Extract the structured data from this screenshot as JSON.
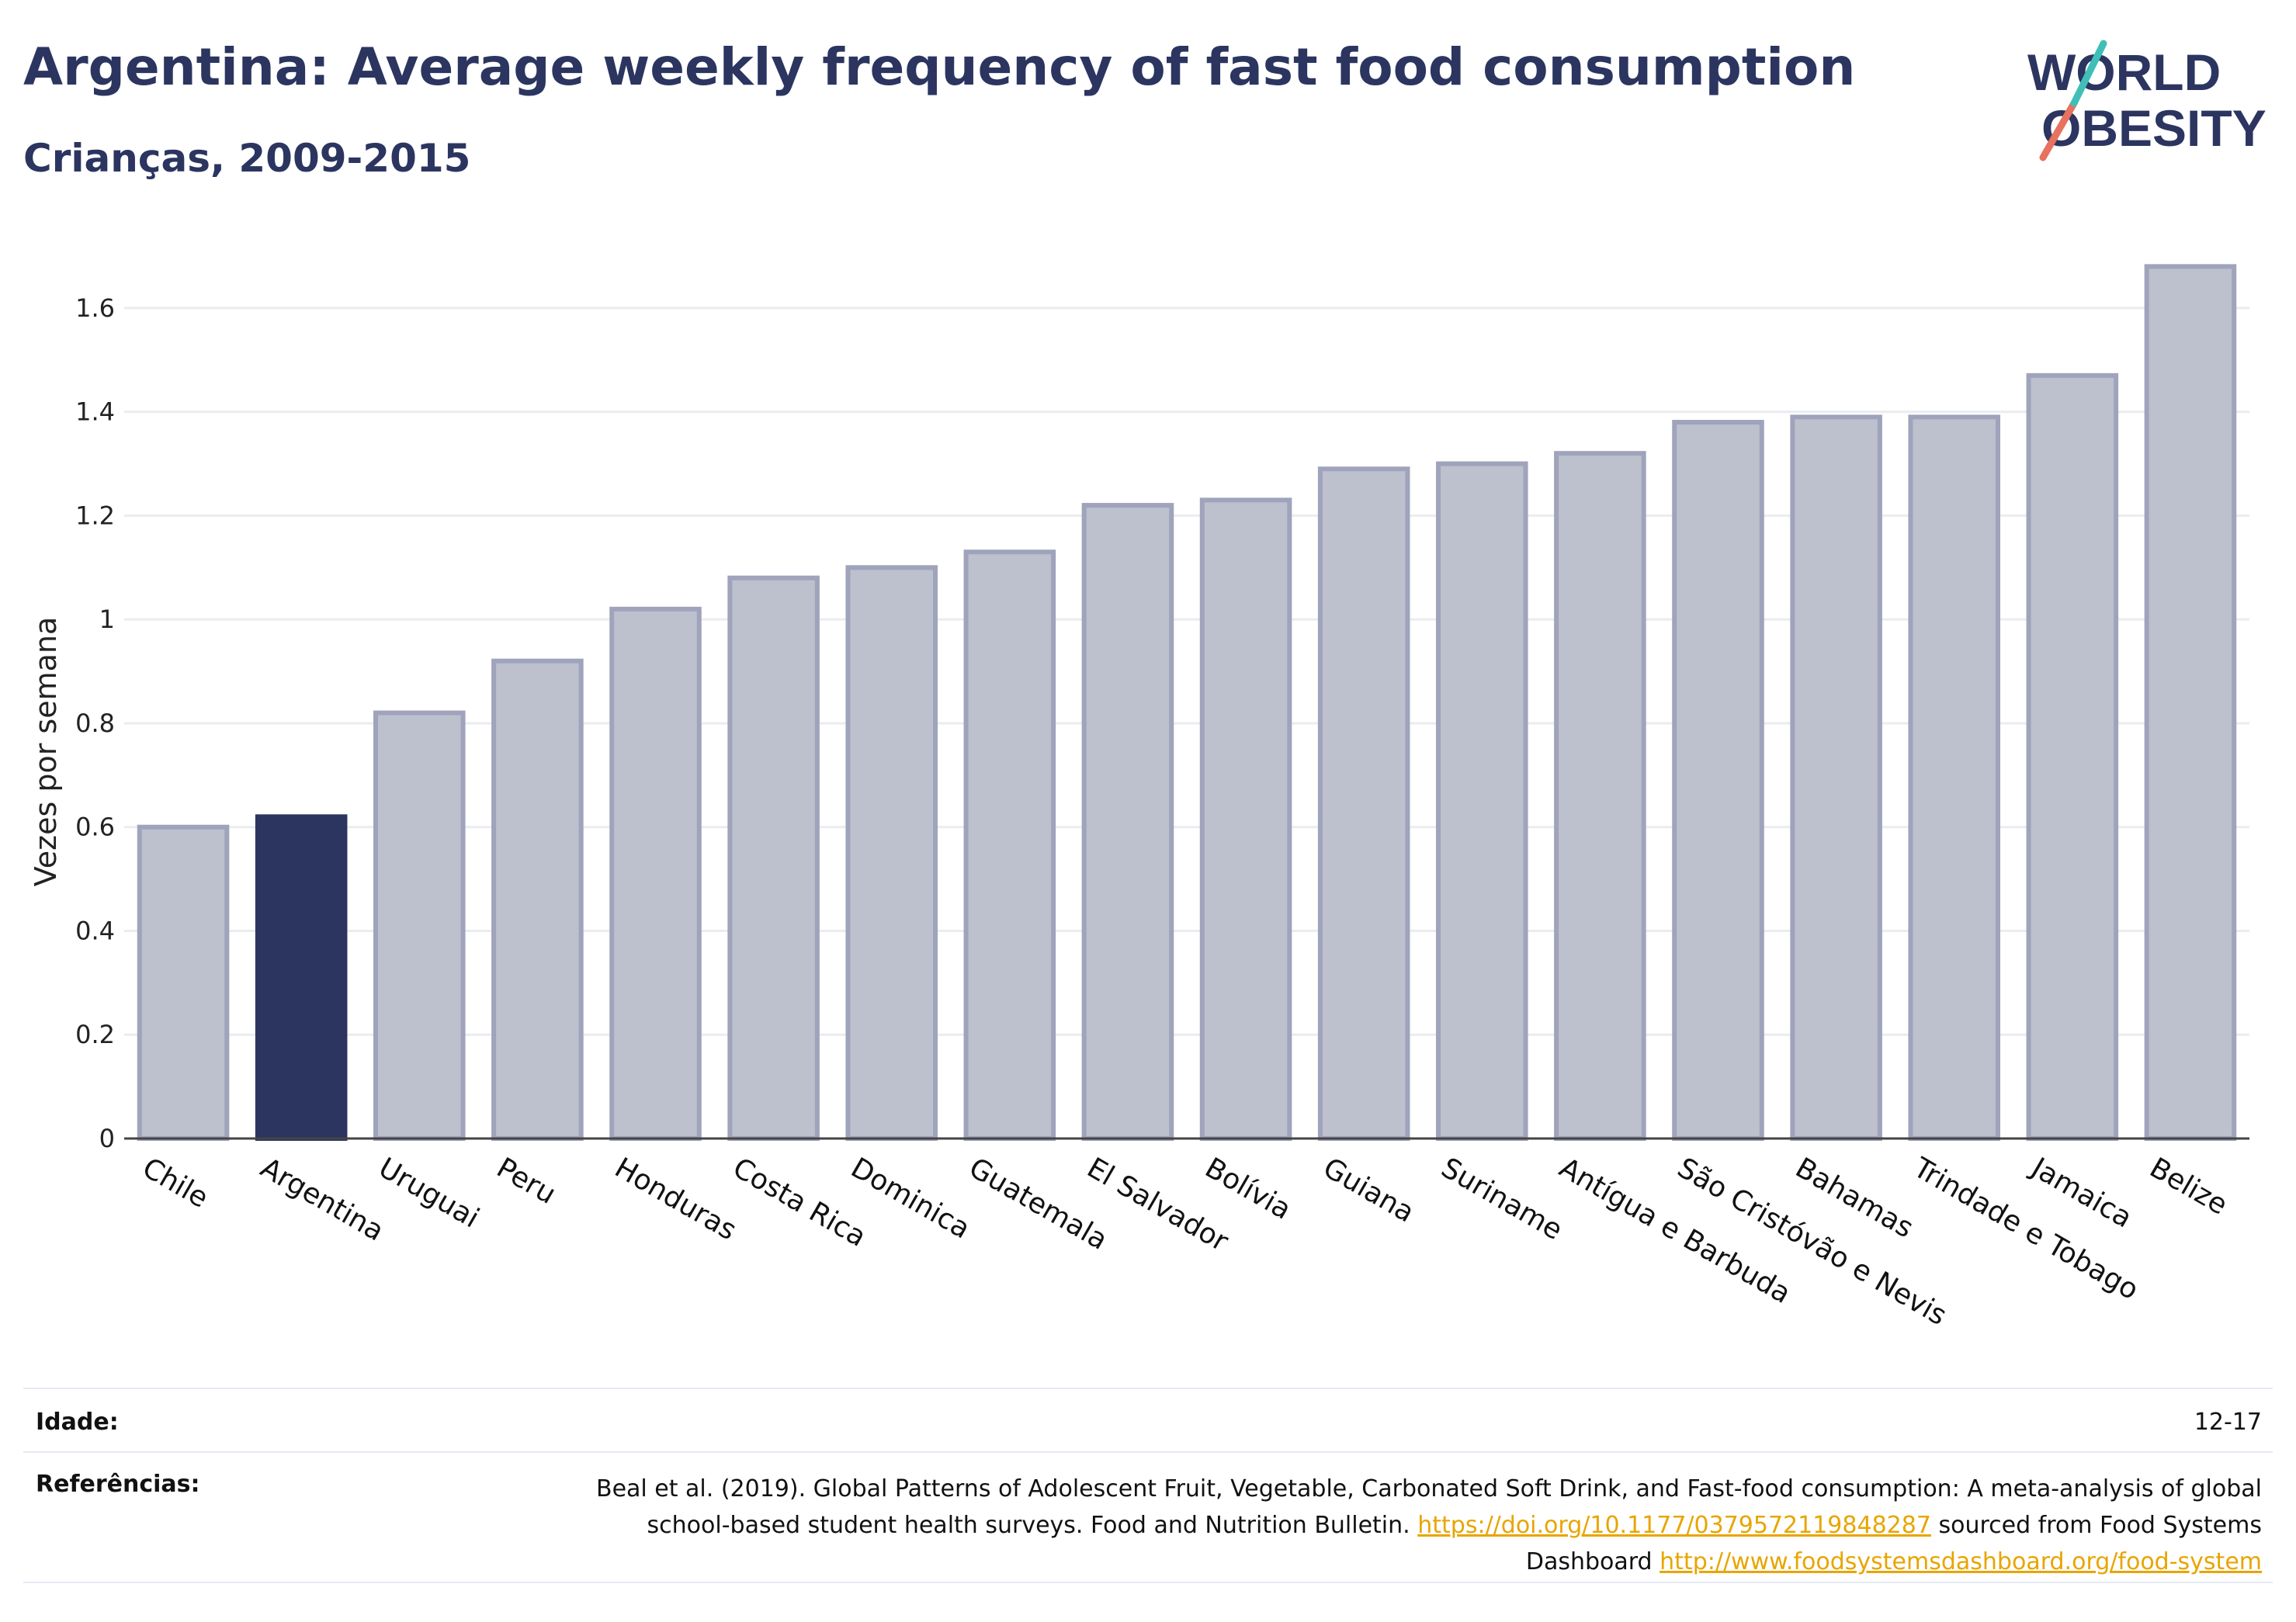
{
  "header": {
    "title": "Argentina: Average weekly frequency of fast food consumption",
    "subtitle": "Crianças, 2009-2015"
  },
  "logo": {
    "line1": "WORLD",
    "line2": "OBESITY",
    "colors": {
      "text": "#2b3560",
      "slash_red": "#e8715f",
      "slash_teal": "#3fbfb8"
    }
  },
  "chart_data": {
    "type": "bar",
    "title": "Argentina: Average weekly frequency of fast food consumption",
    "subtitle": "Crianças, 2009-2015",
    "xlabel": "",
    "ylabel": "Vezes por semana",
    "ylim": [
      0,
      1.7
    ],
    "yticks": [
      0,
      0.2,
      0.4,
      0.6,
      0.8,
      1,
      1.2,
      1.4,
      1.6
    ],
    "ytick_labels": [
      "0",
      "0.2",
      "0.4",
      "0.6",
      "0.8",
      "1",
      "1.2",
      "1.4",
      "1.6"
    ],
    "grid": true,
    "categories": [
      "Chile",
      "Argentina",
      "Uruguai",
      "Peru",
      "Honduras",
      "Costa Rica",
      "Dominica",
      "Guatemala",
      "El Salvador",
      "Bolívia",
      "Guiana",
      "Suriname",
      "Antígua e Barbuda",
      "São Cristóvão e Nevis",
      "Bahamas",
      "Trindade e Tobago",
      "Jamaica",
      "Belize"
    ],
    "values": [
      0.6,
      0.62,
      0.82,
      0.92,
      1.02,
      1.08,
      1.1,
      1.13,
      1.22,
      1.23,
      1.29,
      1.3,
      1.32,
      1.38,
      1.39,
      1.39,
      1.47,
      1.68
    ],
    "highlight": "Argentina",
    "colors": {
      "highlight": "#2b3560",
      "bar_fill": "#bdc0cd",
      "bar_stroke": "#9fa3bb",
      "grid": "#ebecf0",
      "axis": "#444444"
    }
  },
  "footer": {
    "age_label": "Idade:",
    "age_value": "12-17",
    "ref_label": "Referências:",
    "ref_text_1": "Beal et al. (2019). Global Patterns of Adolescent Fruit, Vegetable, Carbonated Soft Drink, and Fast-food consumption: A meta-analysis of global school-based student health surveys. Food and Nutrition Bulletin.",
    "ref_link_1": "https://doi.org/10.1177/0379572119848287",
    "ref_text_2": "sourced from Food Systems Dashboard",
    "ref_link_2": "http://www.foodsystemsdashboard.org/food-system"
  }
}
